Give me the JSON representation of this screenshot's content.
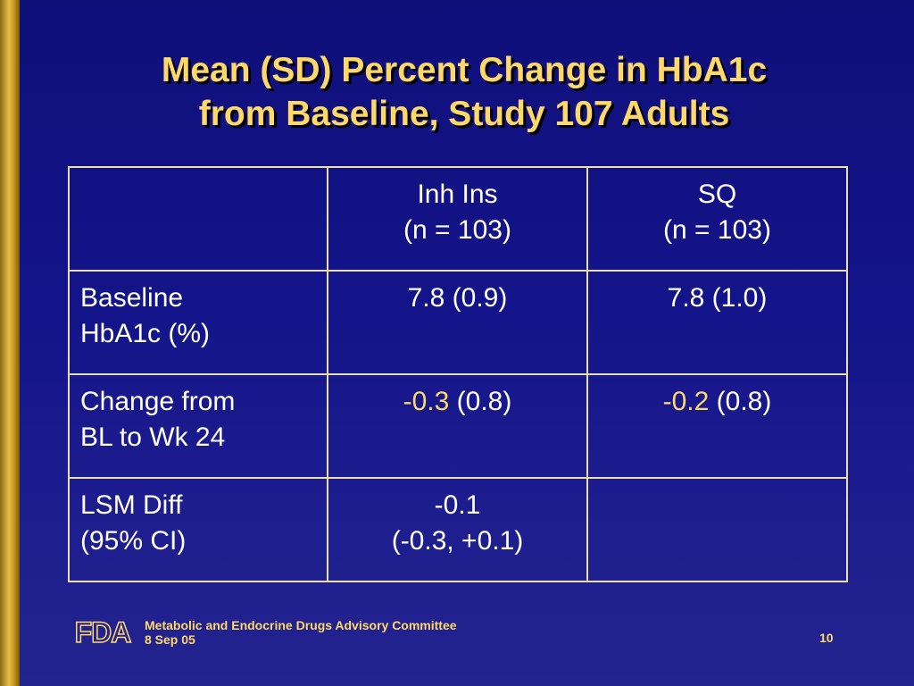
{
  "slide": {
    "title_line1": "Mean (SD) Percent Change in HbA1c",
    "title_line2": "from Baseline, Study 107 Adults"
  },
  "table": {
    "header": {
      "col1_line1": "Inh Ins",
      "col1_line2": "(n = 103)",
      "col2_line1": "SQ",
      "col2_line2": "(n = 103)"
    },
    "rows": [
      {
        "label_line1": "Baseline",
        "label_line2": "HbA1c (%)",
        "inh": "7.8 (0.9)",
        "sq": "7.8 (1.0)"
      },
      {
        "label_line1": "Change from",
        "label_line2": "BL to Wk 24",
        "inh_value": "-0.3",
        "inh_sd": "(0.8)",
        "sq_value": "-0.2",
        "sq_sd": "(0.8)"
      },
      {
        "label_line1": "LSM Diff",
        "label_line2": "(95% CI)",
        "inh_line1": "-0.1",
        "inh_line2": "(-0.3, +0.1)",
        "sq": ""
      }
    ]
  },
  "footer": {
    "logo_text": "FDA",
    "committee": "Metabolic and Endocrine Drugs Advisory Committee",
    "date": "8 Sep 05",
    "page_number": "10"
  },
  "colors": {
    "background": "#14148a",
    "title": "#ffd86a",
    "highlight": "#ffd86a",
    "text": "#ffffff",
    "border": "#e9dfa8",
    "side_bar": "#e8c04a"
  }
}
